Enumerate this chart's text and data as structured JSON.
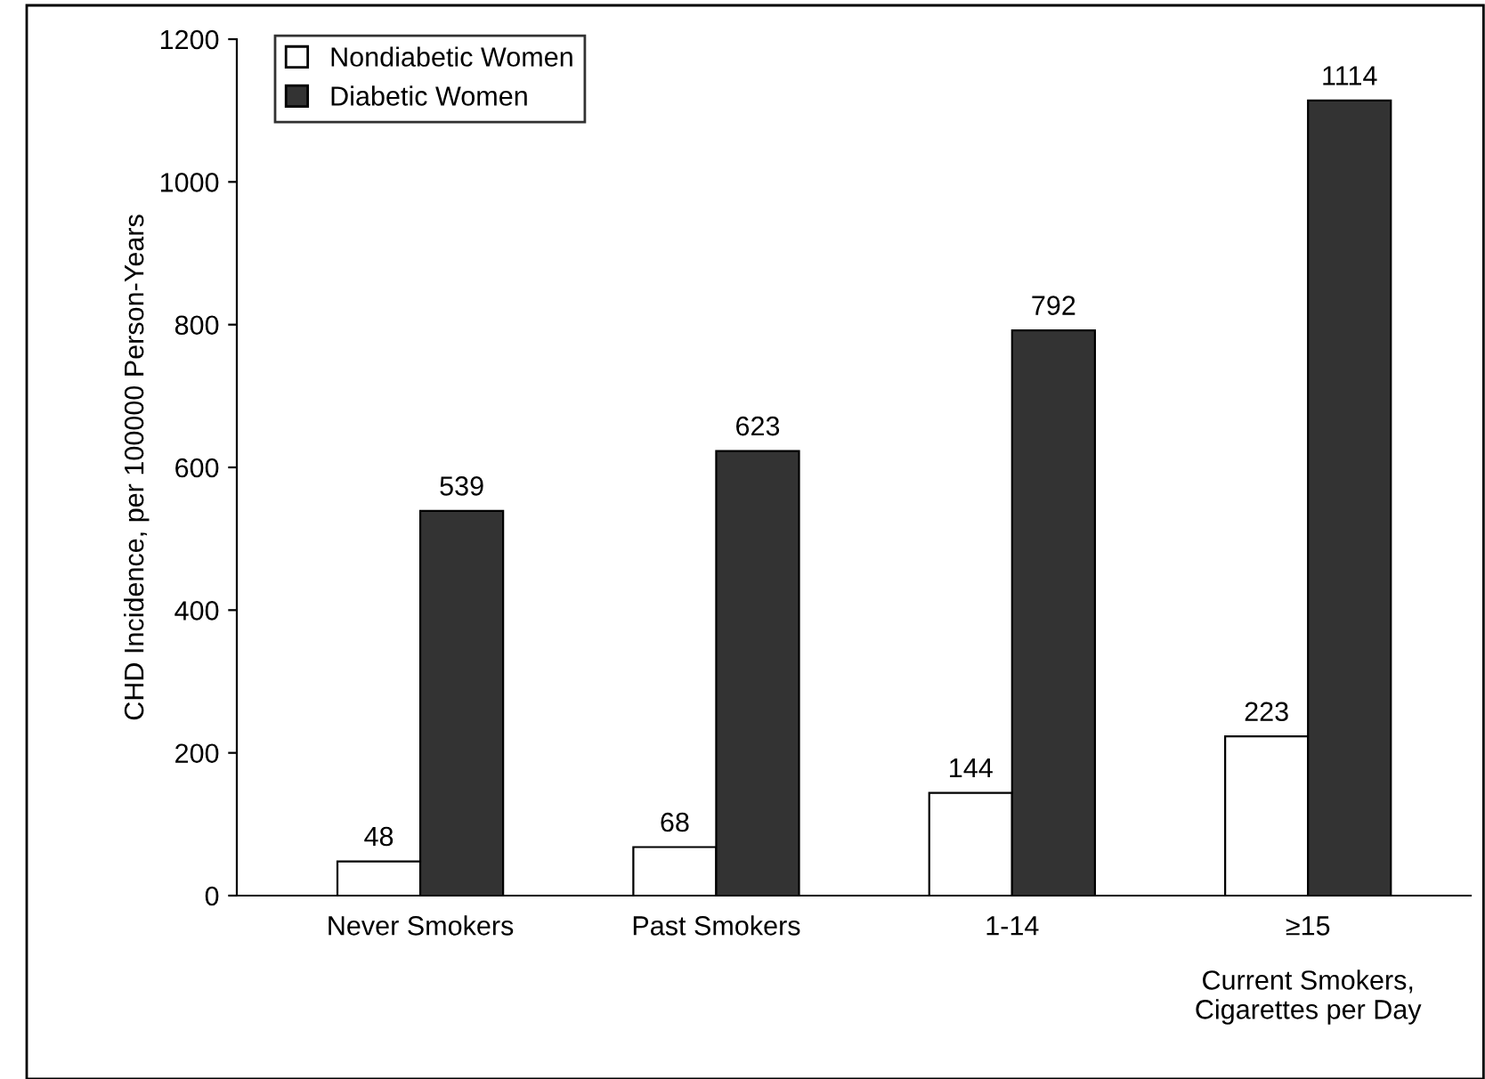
{
  "chart_data": {
    "type": "bar",
    "ylabel": "CHD Incidence, per 100000 Person-Years",
    "categories": [
      "Never Smokers",
      "Past Smokers",
      "1-14",
      "≥15"
    ],
    "series": [
      {
        "name": "Nondiabetic Women",
        "color": "#ffffff",
        "values": [
          48,
          68,
          144,
          223
        ]
      },
      {
        "name": "Diabetic Women",
        "color": "#333333",
        "values": [
          539,
          623,
          792,
          1114
        ]
      }
    ],
    "ylim": [
      0,
      1200
    ],
    "yticks": [
      0,
      200,
      400,
      600,
      800,
      1000,
      1200
    ],
    "data_labels": true,
    "legend": "top left",
    "grid": false,
    "annotations": [
      {
        "text": "Current Smokers,\nCigarettes per Day",
        "x": "≥15",
        "y": 0
      }
    ]
  }
}
